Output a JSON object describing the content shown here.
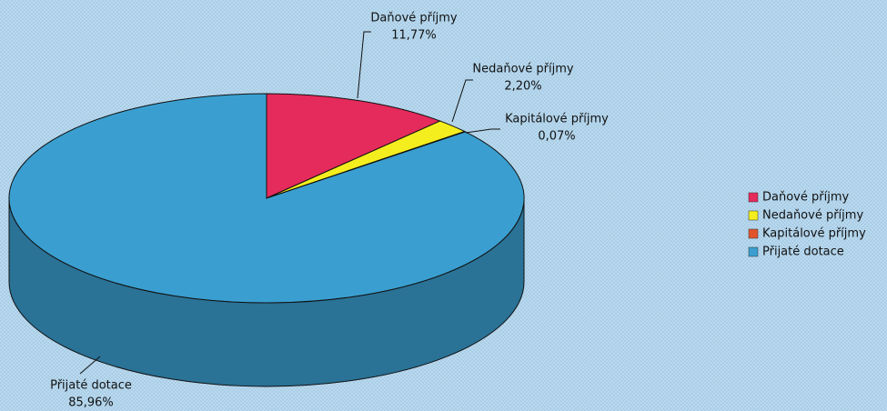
{
  "chart_data": {
    "type": "pie",
    "categories": [
      "Daňové příjmy",
      "Nedaňové příjmy",
      "Kapitálové příjmy",
      "Přijaté dotace"
    ],
    "values": [
      11.77,
      2.2,
      0.07,
      85.96
    ],
    "value_labels": [
      "11,77%",
      "2,20%",
      "0,07%",
      "85,96%"
    ],
    "colors": [
      "#e52a5c",
      "#f4ee1e",
      "#e1542c",
      "#3a9fd0"
    ],
    "legend": "right"
  }
}
